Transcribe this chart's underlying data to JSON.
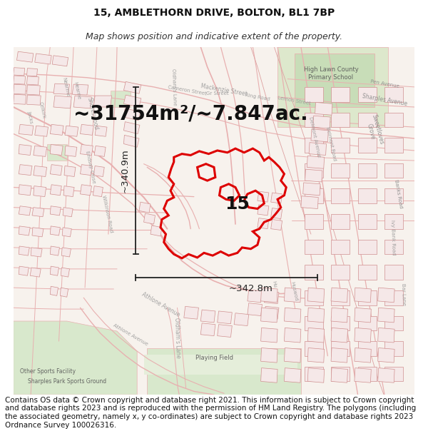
{
  "title_line1": "15, AMBLETHORN DRIVE, BOLTON, BL1 7BP",
  "title_line2": "Map shows position and indicative extent of the property.",
  "area_text": "~31754m²/~7.847ac.",
  "label_15": "15",
  "dim_left": "~340.9m",
  "dim_bottom": "~342.8m",
  "footer_text": "Contains OS data © Crown copyright and database right 2021. This information is subject to Crown copyright and database rights 2023 and is reproduced with the permission of HM Land Registry. The polygons (including the associated geometry, namely x, y co-ordinates) are subject to Crown copyright and database rights 2023 Ordnance Survey 100026316.",
  "bg_color": "#f5f0eb",
  "title_fontsize": 10,
  "subtitle_fontsize": 9,
  "area_fontsize": 20,
  "label_fontsize": 18,
  "dim_fontsize": 9.5,
  "footer_fontsize": 7.5,
  "red_color": "#dd0000",
  "dim_color": "#222222",
  "street_color": "#e8b0b0",
  "building_edge": "#d09090",
  "building_fill": "#f5e8e8",
  "green_fill": "#d8e8cc",
  "open_fill": "#e8ece0"
}
